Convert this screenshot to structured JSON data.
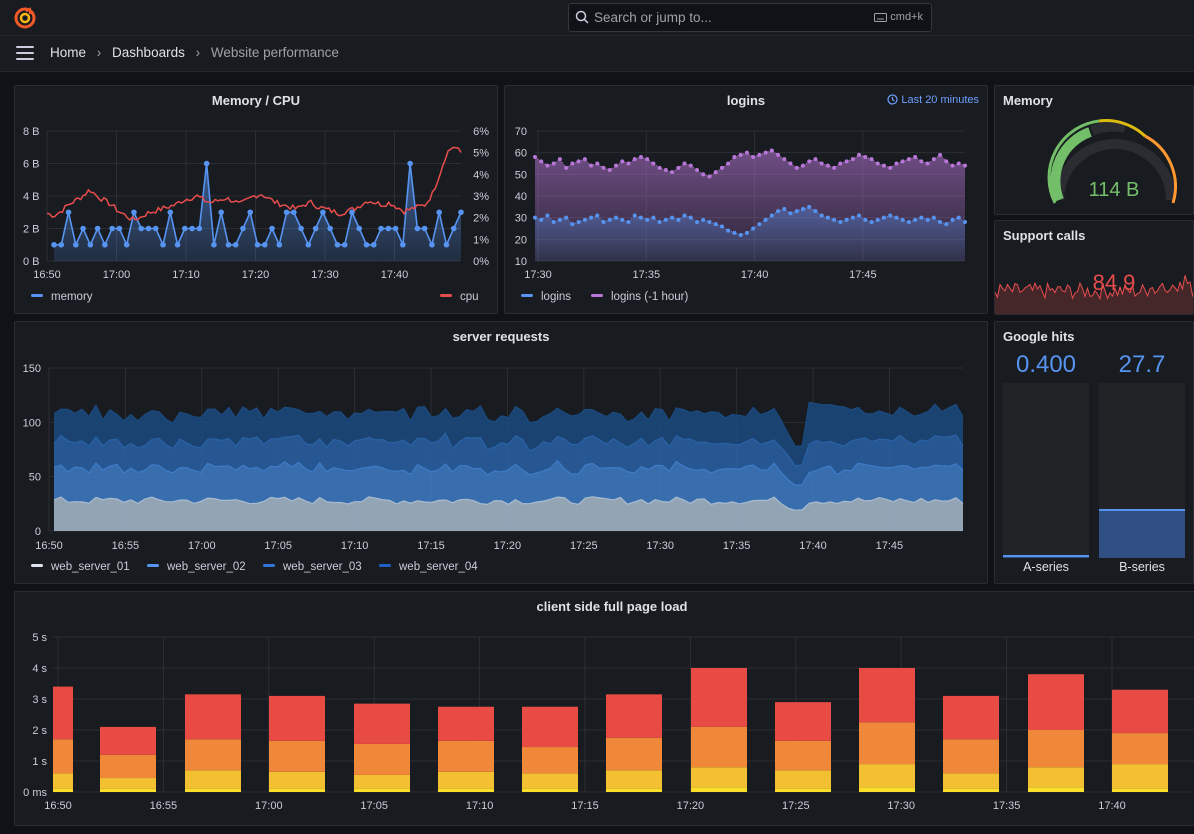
{
  "search": {
    "placeholder": "Search or jump to...",
    "shortcut": "cmd+k"
  },
  "breadcrumb": {
    "home": "Home",
    "dashboards": "Dashboards",
    "current": "Website performance"
  },
  "colors": {
    "bg": "#111217",
    "panel": "#181b1f",
    "blue": "#5794f2",
    "red": "#e84d4d",
    "purple": "#b877d9",
    "green": "#73bf69",
    "orange": "#ff9830"
  },
  "panels": {
    "memory_cpu": {
      "title": "Memory / CPU",
      "legend": [
        "memory",
        "cpu"
      ]
    },
    "logins": {
      "title": "logins",
      "time_range": "Last 20 minutes",
      "legend": [
        "logins",
        "logins (-1 hour)"
      ]
    },
    "memory_gauge": {
      "title": "Memory",
      "value": "114 B",
      "fraction": 0.6
    },
    "support_calls": {
      "title": "Support calls",
      "value": "84.9"
    },
    "server_requests": {
      "title": "server requests",
      "legend": [
        "web_server_01",
        "web_server_02",
        "web_server_03",
        "web_server_04"
      ]
    },
    "google_hits": {
      "title": "Google hits",
      "a_value": "0.400",
      "b_value": "27.7",
      "a_label": "A-series",
      "b_label": "B-series",
      "a_fill": 0.015,
      "b_fill": 0.28
    },
    "page_load": {
      "title": "client side full page load"
    }
  },
  "chart_data": [
    {
      "panel": "Memory / CPU",
      "type": "line",
      "x_ticks": [
        "16:50",
        "17:00",
        "17:10",
        "17:20",
        "17:30",
        "17:40"
      ],
      "y_left_ticks": [
        "0 B",
        "2 B",
        "4 B",
        "6 B",
        "8 B"
      ],
      "ylim_left": [
        0,
        8
      ],
      "y_right_ticks": [
        "0%",
        "1%",
        "2%",
        "3%",
        "4%",
        "5%",
        "6%"
      ],
      "ylim_right": [
        0,
        6
      ],
      "series": [
        {
          "name": "memory",
          "axis": "left",
          "values": [
            1,
            1,
            3,
            1,
            2,
            1,
            2,
            1,
            2,
            2,
            1,
            3,
            2,
            2,
            2,
            1,
            3,
            1,
            2,
            2,
            2,
            6,
            1,
            3,
            1,
            1,
            2,
            3,
            1,
            1,
            2,
            1,
            3,
            3,
            2,
            1,
            2,
            3,
            2,
            1,
            1,
            3,
            2,
            1,
            1,
            2,
            2,
            2,
            1,
            6,
            2,
            2,
            1,
            3,
            1,
            2,
            3
          ]
        },
        {
          "name": "cpu",
          "axis": "right",
          "values": [
            2.2,
            2.1,
            2.3,
            2.6,
            2.8,
            3.0,
            3.3,
            3.0,
            2.8,
            2.6,
            2.3,
            2.1,
            1.9,
            2.0,
            2.2,
            2.3,
            2.4,
            2.5,
            2.6,
            2.8,
            2.9,
            3.0,
            2.8,
            2.7,
            2.8,
            2.9,
            2.8,
            2.6,
            2.8,
            3.0,
            3.1,
            2.9,
            2.7,
            2.6,
            2.5,
            2.4,
            2.6,
            2.7,
            2.5,
            2.4,
            2.3,
            2.2,
            2.3,
            2.4,
            2.6,
            2.8,
            2.7,
            2.6,
            2.7,
            2.5,
            2.3,
            2.4,
            2.5,
            2.6,
            3.1,
            4.0,
            5.0,
            5.3,
            5.0
          ]
        }
      ]
    },
    {
      "panel": "logins",
      "type": "scatter",
      "x_ticks": [
        "17:30",
        "17:35",
        "17:40",
        "17:45"
      ],
      "y_ticks": [
        "10",
        "20",
        "30",
        "40",
        "50",
        "60",
        "70"
      ],
      "ylim": [
        10,
        70
      ],
      "series": [
        {
          "name": "logins",
          "values": [
            30,
            29,
            31,
            28,
            29,
            30,
            27,
            28,
            29,
            30,
            31,
            28,
            29,
            30,
            29,
            28,
            31,
            30,
            29,
            30,
            28,
            29,
            30,
            29,
            31,
            30,
            28,
            29,
            28,
            27,
            26,
            24,
            23,
            22,
            23,
            25,
            27,
            29,
            31,
            33,
            34,
            32,
            33,
            34,
            35,
            33,
            31,
            30,
            29,
            28,
            29,
            30,
            31,
            29,
            28,
            29,
            30,
            31,
            30,
            29,
            28,
            29,
            30,
            29,
            30,
            28,
            27,
            29,
            30,
            28
          ]
        },
        {
          "name": "logins (-1 hour)",
          "values": [
            58,
            56,
            54,
            55,
            57,
            53,
            55,
            56,
            57,
            54,
            55,
            53,
            52,
            54,
            56,
            55,
            57,
            58,
            57,
            55,
            53,
            52,
            51,
            53,
            55,
            54,
            52,
            50,
            49,
            51,
            53,
            55,
            58,
            59,
            60,
            58,
            59,
            60,
            61,
            59,
            57,
            55,
            53,
            54,
            56,
            57,
            55,
            54,
            53,
            55,
            56,
            57,
            59,
            58,
            57,
            55,
            54,
            53,
            55,
            56,
            57,
            58,
            56,
            55,
            57,
            59,
            56,
            54,
            55,
            54
          ]
        }
      ]
    },
    {
      "panel": "server requests",
      "type": "area",
      "stacked": true,
      "x_ticks": [
        "16:50",
        "16:55",
        "17:00",
        "17:05",
        "17:10",
        "17:15",
        "17:20",
        "17:25",
        "17:30",
        "17:35",
        "17:40",
        "17:45"
      ],
      "y_ticks": [
        "0",
        "50",
        "100",
        "150"
      ],
      "ylim": [
        0,
        150
      ],
      "series": [
        {
          "name": "web_server_01",
          "approx": 28
        },
        {
          "name": "web_server_02",
          "approx": 30
        },
        {
          "name": "web_server_03",
          "approx": 25
        },
        {
          "name": "web_server_04",
          "approx": 26
        }
      ]
    },
    {
      "panel": "client side full page load",
      "type": "bar",
      "stacked": true,
      "x_ticks": [
        "16:50",
        "16:55",
        "17:00",
        "17:05",
        "17:10",
        "17:15",
        "17:20",
        "17:25",
        "17:30",
        "17:35",
        "17:40"
      ],
      "y_ticks": [
        "0 ms",
        "1 s",
        "2 s",
        "3 s",
        "4 s",
        "5 s"
      ],
      "ylim": [
        0,
        5
      ],
      "bars": [
        {
          "total": 3.4,
          "parts": [
            0.1,
            0.5,
            1.1,
            1.7
          ]
        },
        {
          "total": 2.1,
          "parts": [
            0.1,
            0.35,
            0.75,
            0.9
          ]
        },
        {
          "total": 3.15,
          "parts": [
            0.1,
            0.6,
            1.0,
            1.45
          ]
        },
        {
          "total": 3.1,
          "parts": [
            0.1,
            0.55,
            1.0,
            1.45
          ]
        },
        {
          "total": 2.85,
          "parts": [
            0.1,
            0.45,
            1.0,
            1.3
          ]
        },
        {
          "total": 2.75,
          "parts": [
            0.1,
            0.55,
            1.0,
            1.1
          ]
        },
        {
          "total": 2.75,
          "parts": [
            0.1,
            0.5,
            0.85,
            1.3
          ]
        },
        {
          "total": 3.15,
          "parts": [
            0.1,
            0.6,
            1.05,
            1.4
          ]
        },
        {
          "total": 4.0,
          "parts": [
            0.15,
            0.65,
            1.3,
            1.9
          ]
        },
        {
          "total": 2.9,
          "parts": [
            0.1,
            0.6,
            0.95,
            1.25
          ]
        },
        {
          "total": 4.0,
          "parts": [
            0.15,
            0.75,
            1.35,
            1.75
          ]
        },
        {
          "total": 3.1,
          "parts": [
            0.1,
            0.5,
            1.1,
            1.4
          ]
        },
        {
          "total": 3.8,
          "parts": [
            0.15,
            0.65,
            1.2,
            1.8
          ]
        },
        {
          "total": 3.3,
          "parts": [
            0.1,
            0.8,
            1.0,
            1.4
          ]
        }
      ]
    }
  ]
}
